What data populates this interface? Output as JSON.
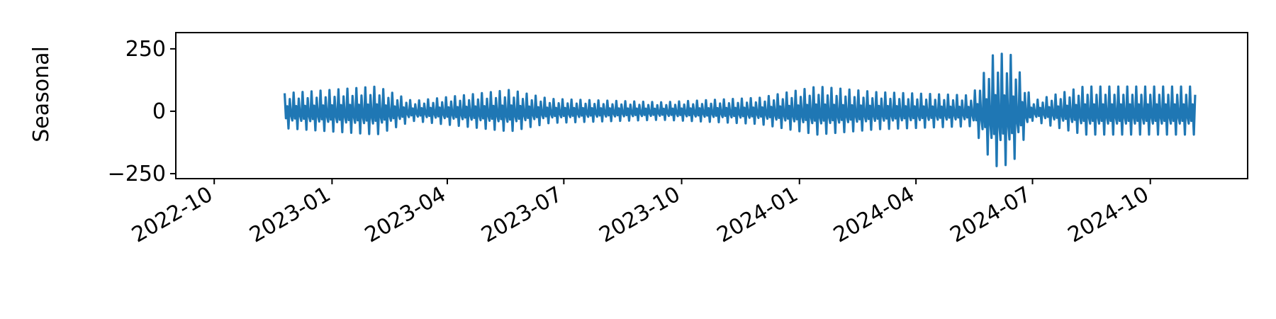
{
  "chart_data": {
    "type": "line",
    "title": "",
    "xlabel": "",
    "ylabel": "Seasonal",
    "x_range": [
      "2022-09-01",
      "2024-12-16"
    ],
    "ylim": [
      -270,
      315
    ],
    "yticks": [
      {
        "value": 250,
        "label": "250"
      },
      {
        "value": 0,
        "label": "0"
      },
      {
        "value": -250,
        "label": "−250"
      }
    ],
    "xticks": [
      {
        "value": "2022-10-01",
        "label": "2022-10"
      },
      {
        "value": "2023-01-01",
        "label": "2023-01"
      },
      {
        "value": "2023-04-01",
        "label": "2023-04"
      },
      {
        "value": "2023-07-01",
        "label": "2023-07"
      },
      {
        "value": "2023-10-01",
        "label": "2023-10"
      },
      {
        "value": "2024-01-01",
        "label": "2024-01"
      },
      {
        "value": "2024-04-01",
        "label": "2024-04"
      },
      {
        "value": "2024-07-01",
        "label": "2024-07"
      },
      {
        "value": "2024-10-01",
        "label": "2024-10"
      }
    ],
    "grid": false,
    "series": [
      {
        "color": "#1f77b4",
        "start_date": "2022-11-25",
        "end_date": "2024-11-05",
        "frequency": "daily",
        "period_days": 7,
        "amplitude_envelope": [
          {
            "date": "2022-11-25",
            "amplitude": 80
          },
          {
            "date": "2023-02-05",
            "amplitude": 110
          },
          {
            "date": "2023-03-05",
            "amplitude": 45
          },
          {
            "date": "2023-05-20",
            "amplitude": 95
          },
          {
            "date": "2023-06-20",
            "amplitude": 55
          },
          {
            "date": "2023-09-15",
            "amplitude": 40
          },
          {
            "date": "2023-12-01",
            "amplitude": 60
          },
          {
            "date": "2024-01-15",
            "amplitude": 110
          },
          {
            "date": "2024-03-01",
            "amplitude": 85
          },
          {
            "date": "2024-05-15",
            "amplitude": 70
          },
          {
            "date": "2024-06-01",
            "amplitude": 260
          },
          {
            "date": "2024-06-15",
            "amplitude": 250
          },
          {
            "date": "2024-07-01",
            "amplitude": 45
          },
          {
            "date": "2024-08-10",
            "amplitude": 110
          },
          {
            "date": "2024-11-05",
            "amplitude": 110
          }
        ]
      }
    ]
  }
}
